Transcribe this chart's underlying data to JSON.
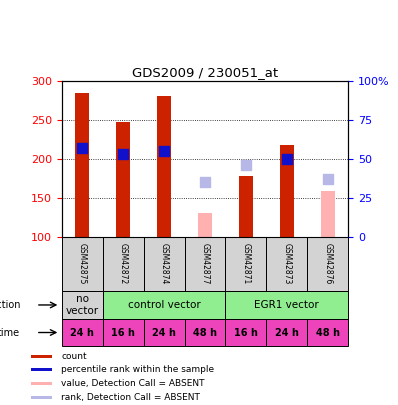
{
  "title": "GDS2009 / 230051_at",
  "samples": [
    "GSM42875",
    "GSM42872",
    "GSM42874",
    "GSM42877",
    "GSM42871",
    "GSM42873",
    "GSM42876"
  ],
  "count_values": [
    284,
    247,
    280,
    null,
    177,
    217,
    null
  ],
  "count_absent": [
    null,
    null,
    null,
    130,
    null,
    null,
    158
  ],
  "rank_values": [
    214,
    206,
    210,
    null,
    null,
    199,
    null
  ],
  "rank_absent": [
    null,
    null,
    null,
    170,
    192,
    null,
    174
  ],
  "ylim_left": [
    100,
    300
  ],
  "ylim_right": [
    0,
    100
  ],
  "yticks_left": [
    100,
    150,
    200,
    250,
    300
  ],
  "yticks_right": [
    0,
    25,
    50,
    75,
    100
  ],
  "ytick_labels_right": [
    "0",
    "25",
    "50",
    "75",
    "100%"
  ],
  "gridlines": [
    150,
    200,
    250
  ],
  "time_labels": [
    "24 h",
    "16 h",
    "24 h",
    "48 h",
    "16 h",
    "24 h",
    "48 h"
  ],
  "bar_color_count": "#cc2200",
  "bar_color_rank": "#1111cc",
  "bar_color_count_absent": "#ffb0b0",
  "bar_color_rank_absent": "#b8b8e8",
  "legend_items": [
    {
      "color": "#cc2200",
      "label": "count"
    },
    {
      "color": "#1111cc",
      "label": "percentile rank within the sample"
    },
    {
      "color": "#ffb0b0",
      "label": "value, Detection Call = ABSENT"
    },
    {
      "color": "#b8b8e8",
      "label": "rank, Detection Call = ABSENT"
    }
  ],
  "bar_width": 0.35,
  "rank_marker_size": 55
}
